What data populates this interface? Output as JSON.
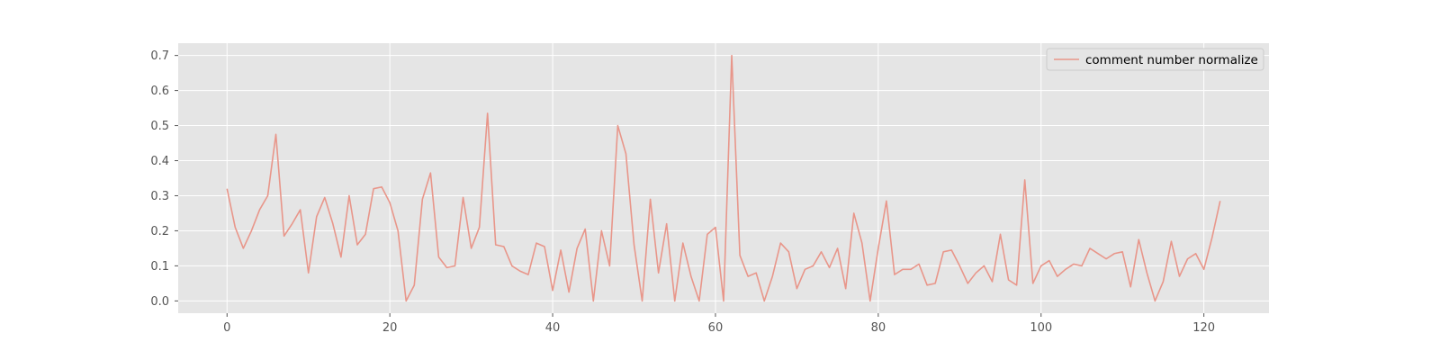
{
  "chart_data": {
    "type": "line",
    "title": "",
    "xlabel": "",
    "ylabel": "",
    "xlim": [
      -6,
      128
    ],
    "ylim": [
      -0.035,
      0.735
    ],
    "xticks": [
      0,
      20,
      40,
      60,
      80,
      100,
      120
    ],
    "yticks": [
      0.0,
      0.1,
      0.2,
      0.3,
      0.4,
      0.5,
      0.6,
      0.7
    ],
    "xtick_labels": [
      "0",
      "20",
      "40",
      "60",
      "80",
      "100",
      "120"
    ],
    "ytick_labels": [
      "0.0",
      "0.1",
      "0.2",
      "0.3",
      "0.4",
      "0.5",
      "0.6",
      "0.7"
    ],
    "grid": true,
    "legend_position": "top-right",
    "series": [
      {
        "name": "comment number normalize",
        "color": "#E8968A",
        "x": [
          0,
          1,
          2,
          3,
          4,
          5,
          6,
          7,
          8,
          9,
          10,
          11,
          12,
          13,
          14,
          15,
          16,
          17,
          18,
          19,
          20,
          21,
          22,
          23,
          24,
          25,
          26,
          27,
          28,
          29,
          30,
          31,
          32,
          33,
          34,
          35,
          36,
          37,
          38,
          39,
          40,
          41,
          42,
          43,
          44,
          45,
          46,
          47,
          48,
          49,
          50,
          51,
          52,
          53,
          54,
          55,
          56,
          57,
          58,
          59,
          60,
          61,
          62,
          63,
          64,
          65,
          66,
          67,
          68,
          69,
          70,
          71,
          72,
          73,
          74,
          75,
          76,
          77,
          78,
          79,
          80,
          81,
          82,
          83,
          84,
          85,
          86,
          87,
          88,
          89,
          90,
          91,
          92,
          93,
          94,
          95,
          96,
          97,
          98,
          99,
          100,
          101,
          102,
          103,
          104,
          105,
          106,
          107,
          108,
          109,
          110,
          111,
          112,
          113,
          114,
          115,
          116,
          117,
          118,
          119,
          120,
          121,
          122
        ],
        "values": [
          0.32,
          0.21,
          0.15,
          0.2,
          0.26,
          0.3,
          0.475,
          0.185,
          0.22,
          0.26,
          0.08,
          0.24,
          0.295,
          0.22,
          0.125,
          0.3,
          0.16,
          0.19,
          0.32,
          0.325,
          0.28,
          0.2,
          0.0,
          0.045,
          0.29,
          0.365,
          0.125,
          0.095,
          0.1,
          0.295,
          0.15,
          0.21,
          0.535,
          0.16,
          0.155,
          0.1,
          0.085,
          0.075,
          0.165,
          0.155,
          0.03,
          0.145,
          0.025,
          0.15,
          0.205,
          0.0,
          0.2,
          0.1,
          0.5,
          0.42,
          0.16,
          0.0,
          0.29,
          0.08,
          0.22,
          0.0,
          0.165,
          0.07,
          0.0,
          0.19,
          0.21,
          0.0,
          0.7,
          0.13,
          0.07,
          0.08,
          0.0,
          0.07,
          0.165,
          0.14,
          0.035,
          0.09,
          0.1,
          0.14,
          0.095,
          0.15,
          0.035,
          0.25,
          0.165,
          0.0,
          0.15,
          0.285,
          0.075,
          0.09,
          0.09,
          0.105,
          0.045,
          0.05,
          0.14,
          0.145,
          0.1,
          0.05,
          0.08,
          0.1,
          0.055,
          0.19,
          0.06,
          0.045,
          0.345,
          0.05,
          0.1,
          0.115,
          0.07,
          0.09,
          0.105,
          0.1,
          0.15,
          0.135,
          0.12,
          0.135,
          0.14,
          0.04,
          0.175,
          0.08,
          0.0,
          0.055,
          0.17,
          0.07,
          0.12,
          0.135,
          0.09,
          0.18,
          0.285
        ]
      }
    ]
  }
}
